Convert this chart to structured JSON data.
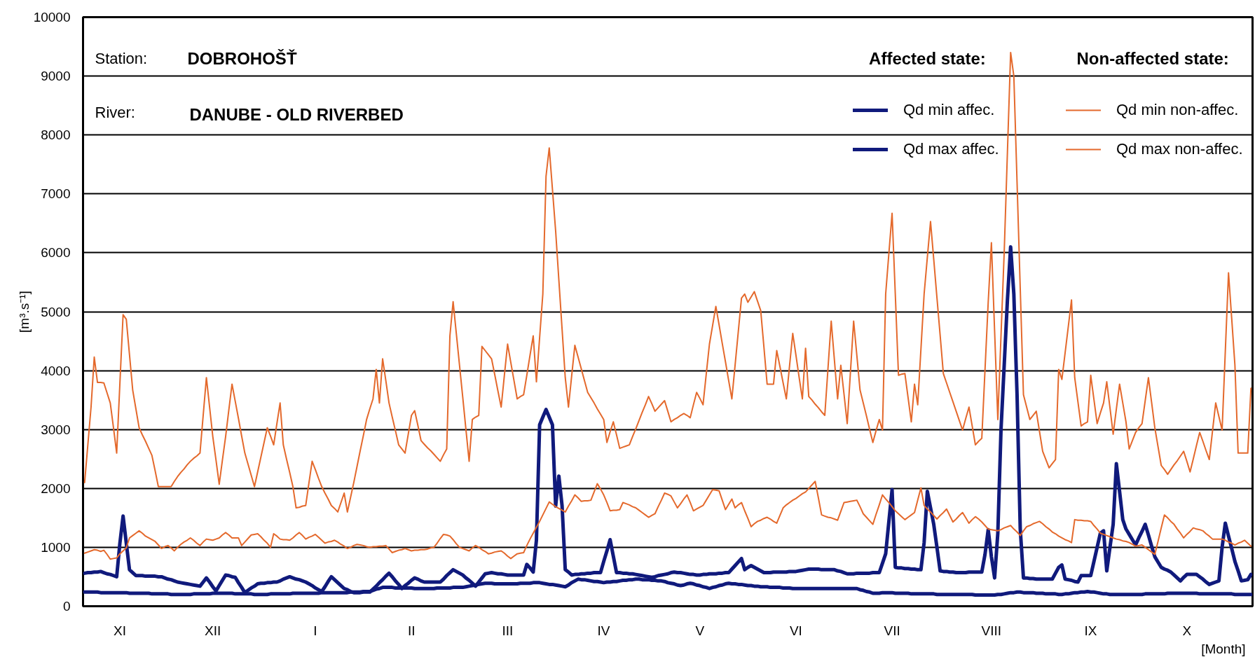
{
  "chart_data": {
    "type": "line",
    "ylim": [
      0,
      10000
    ],
    "categories": [
      null,
      null,
      null,
      null,
      null,
      null,
      null,
      null,
      null,
      null,
      null,
      "XI",
      null,
      null,
      null,
      null,
      null,
      null,
      null,
      null,
      null,
      null,
      null,
      null,
      null,
      null,
      null,
      null,
      null,
      null,
      null,
      null,
      null,
      null,
      null,
      null,
      null,
      null,
      null,
      null,
      "XII",
      null,
      null,
      null,
      null,
      null,
      null,
      null,
      null,
      null,
      null,
      null,
      null,
      null,
      null,
      null,
      null,
      null,
      null,
      null,
      null,
      null,
      null,
      null,
      null,
      null,
      null,
      null,
      null,
      null,
      null,
      null,
      "I",
      null,
      null,
      null,
      null,
      null,
      null,
      null,
      null,
      null,
      null,
      null,
      null,
      null,
      null,
      null,
      null,
      null,
      null,
      null,
      null,
      null,
      null,
      null,
      null,
      null,
      null,
      null,
      null,
      null,
      "II",
      null,
      null,
      null,
      null,
      null,
      null,
      null,
      null,
      null,
      null,
      null,
      null,
      null,
      null,
      null,
      null,
      null,
      null,
      null,
      null,
      null,
      null,
      null,
      null,
      null,
      null,
      null,
      null,
      null,
      "III",
      null,
      null,
      null,
      null,
      null,
      null,
      null,
      null,
      null,
      null,
      null,
      null,
      null,
      null,
      null,
      null,
      null,
      null,
      null,
      null,
      null,
      null,
      null,
      null,
      null,
      null,
      null,
      null,
      null,
      "IV",
      null,
      null,
      null,
      null,
      null,
      null,
      null,
      null,
      null,
      null,
      null,
      null,
      null,
      null,
      null,
      null,
      null,
      null,
      null,
      null,
      null,
      null,
      null,
      null,
      null,
      null,
      null,
      null,
      null,
      "V",
      null,
      null,
      null,
      null,
      null,
      null,
      null,
      null,
      null,
      null,
      null,
      null,
      null,
      null,
      null,
      null,
      null,
      null,
      null,
      null,
      null,
      null,
      null,
      null,
      null,
      null,
      null,
      null,
      null,
      "VI",
      null,
      null,
      null,
      null,
      null,
      null,
      null,
      null,
      null,
      null,
      null,
      null,
      null,
      null,
      null,
      null,
      null,
      null,
      null,
      null,
      null,
      null,
      null,
      null,
      null,
      null,
      null,
      null,
      null,
      "VII",
      null,
      null,
      null,
      null,
      null,
      null,
      null,
      null,
      null,
      null,
      null,
      null,
      null,
      null,
      null,
      null,
      null,
      null,
      null,
      null,
      null,
      null,
      null,
      null,
      null,
      null,
      null,
      null,
      null,
      null,
      "VIII",
      null,
      null,
      null,
      null,
      null,
      null,
      null,
      null,
      null,
      null,
      null,
      null,
      null,
      null,
      null,
      null,
      null,
      null,
      null,
      null,
      null,
      null,
      null,
      null,
      null,
      null,
      null,
      null,
      null,
      null,
      "IX",
      null,
      null,
      null,
      null,
      null,
      null,
      null,
      null,
      null,
      null,
      null,
      null,
      null,
      null,
      null,
      null,
      null,
      null,
      null,
      null,
      null,
      null,
      null,
      null,
      null,
      null,
      null,
      null,
      null,
      "X",
      null,
      null,
      null,
      null,
      null,
      null,
      null,
      null,
      null,
      null,
      null,
      null,
      null,
      null,
      null,
      null,
      null,
      null,
      null,
      null
    ],
    "yticks": [
      0,
      1000,
      2000,
      3000,
      4000,
      5000,
      6000,
      7000,
      8000,
      9000,
      10000
    ],
    "xlabel": "[Month]",
    "ylabel": "[m³.s⁻¹]",
    "annotations": [
      "Station:",
      "DOBROHOŠŤ",
      "River:",
      "DANUBE - OLD RIVERBED",
      "Affected state:",
      "Non-affected state:"
    ],
    "grid": "y",
    "legend": "top right",
    "series": [
      {
        "name": "Qd min affec.",
        "color": "#101a7c",
        "values": [
          240,
          240,
          240,
          240,
          240,
          230,
          230,
          230,
          230,
          230,
          230,
          230,
          230,
          230,
          220,
          220,
          220,
          220,
          220,
          220,
          220,
          210,
          210,
          210,
          210,
          210,
          210,
          200,
          200,
          200,
          200,
          200,
          200,
          200,
          210,
          210,
          210,
          210,
          210,
          210,
          220,
          220,
          220,
          220,
          220,
          220,
          220,
          210,
          210,
          210,
          210,
          210,
          210,
          200,
          200,
          200,
          200,
          200,
          210,
          210,
          210,
          210,
          210,
          210,
          210,
          220,
          220,
          220,
          220,
          220,
          220,
          220,
          220,
          220,
          230,
          230,
          230,
          230,
          230,
          230,
          230,
          230,
          230,
          240,
          240,
          240,
          240,
          250,
          250,
          250,
          270,
          290,
          300,
          320,
          320,
          320,
          320,
          310,
          310,
          310,
          310,
          310,
          310,
          300,
          300,
          300,
          300,
          300,
          300,
          300,
          310,
          310,
          310,
          310,
          310,
          320,
          320,
          320,
          320,
          330,
          340,
          350,
          360,
          370,
          380,
          390,
          390,
          390,
          380,
          380,
          380,
          380,
          380,
          380,
          380,
          380,
          390,
          390,
          390,
          390,
          400,
          400,
          400,
          390,
          380,
          370,
          370,
          360,
          350,
          340,
          330,
          360,
          400,
          430,
          460,
          450,
          450,
          440,
          430,
          420,
          420,
          410,
          400,
          410,
          410,
          420,
          420,
          430,
          440,
          440,
          450,
          450,
          460,
          460,
          450,
          450,
          450,
          440,
          440,
          430,
          430,
          420,
          400,
          390,
          380,
          360,
          350,
          360,
          380,
          390,
          380,
          360,
          350,
          330,
          320,
          300,
          320,
          330,
          350,
          360,
          380,
          390,
          380,
          380,
          370,
          370,
          360,
          350,
          350,
          340,
          340,
          330,
          330,
          330,
          320,
          320,
          320,
          320,
          310,
          310,
          310,
          300,
          300,
          300,
          300,
          300,
          300,
          300,
          300,
          300,
          300,
          300,
          300,
          300,
          300,
          300,
          300,
          300,
          300,
          300,
          300,
          300,
          280,
          270,
          250,
          240,
          220,
          220,
          220,
          230,
          230,
          230,
          230,
          220,
          220,
          220,
          220,
          220,
          210,
          210,
          210,
          210,
          210,
          210,
          210,
          210,
          200,
          200,
          200,
          200,
          200,
          200,
          200,
          200,
          200,
          200,
          200,
          200,
          190,
          190,
          190,
          190,
          190,
          190,
          190,
          200,
          200,
          210,
          220,
          230,
          230,
          240,
          240,
          230,
          230,
          230,
          230,
          220,
          220,
          220,
          210,
          210,
          210,
          210,
          200,
          200,
          210,
          210,
          220,
          230,
          230,
          240,
          240,
          250,
          240,
          240,
          230,
          220,
          210,
          210,
          200,
          200,
          200,
          200,
          200,
          200,
          200,
          200,
          200,
          200,
          200,
          210,
          210,
          210,
          210,
          210,
          210,
          210,
          220,
          220,
          220,
          220,
          220,
          220,
          220,
          220,
          220,
          220,
          210,
          210,
          210,
          210,
          210,
          210,
          210,
          210,
          210,
          210,
          210,
          200,
          200,
          200,
          200,
          200,
          200
        ]
      },
      {
        "name": "Qd max affec.",
        "color": "#101a7c",
        "values": [
          560,
          570,
          570,
          580,
          580,
          590,
          570,
          550,
          540,
          520,
          500,
          1070,
          1530,
          1070,
          620,
          570,
          520,
          520,
          520,
          510,
          510,
          510,
          510,
          500,
          500,
          480,
          460,
          450,
          430,
          410,
          400,
          390,
          380,
          370,
          360,
          350,
          340,
          410,
          480,
          410,
          330,
          260,
          350,
          440,
          530,
          520,
          500,
          490,
          400,
          320,
          230,
          270,
          310,
          340,
          380,
          390,
          390,
          400,
          400,
          410,
          410,
          430,
          460,
          480,
          500,
          480,
          460,
          450,
          430,
          410,
          380,
          350,
          310,
          280,
          250,
          330,
          420,
          500,
          450,
          400,
          350,
          300,
          280,
          250,
          230,
          230,
          230,
          240,
          240,
          240,
          290,
          340,
          400,
          450,
          510,
          560,
          500,
          430,
          370,
          300,
          350,
          390,
          440,
          480,
          460,
          430,
          410,
          410,
          410,
          410,
          410,
          410,
          460,
          520,
          570,
          620,
          590,
          560,
          530,
          480,
          440,
          390,
          340,
          410,
          480,
          550,
          560,
          570,
          560,
          550,
          550,
          540,
          530,
          530,
          530,
          530,
          530,
          530,
          710,
          650,
          580,
          1120,
          3080,
          3210,
          3340,
          3210,
          3080,
          1700,
          2210,
          1710,
          620,
          580,
          530,
          540,
          540,
          550,
          550,
          560,
          560,
          570,
          570,
          570,
          760,
          940,
          1130,
          850,
          570,
          570,
          560,
          560,
          550,
          550,
          540,
          530,
          520,
          510,
          500,
          490,
          500,
          520,
          530,
          540,
          550,
          570,
          580,
          570,
          570,
          560,
          550,
          540,
          540,
          530,
          530,
          540,
          540,
          550,
          550,
          550,
          560,
          560,
          570,
          570,
          630,
          690,
          750,
          810,
          620,
          660,
          690,
          660,
          630,
          600,
          570,
          570,
          570,
          580,
          580,
          580,
          580,
          580,
          590,
          590,
          590,
          600,
          610,
          620,
          630,
          630,
          630,
          630,
          620,
          620,
          620,
          620,
          620,
          600,
          590,
          570,
          550,
          550,
          550,
          560,
          560,
          560,
          560,
          560,
          570,
          570,
          570,
          730,
          890,
          1440,
          1980,
          660,
          650,
          650,
          640,
          640,
          630,
          630,
          620,
          620,
          1080,
          1950,
          1670,
          1390,
          1000,
          600,
          590,
          590,
          580,
          580,
          570,
          570,
          570,
          570,
          580,
          580,
          580,
          580,
          580,
          880,
          1300,
          840,
          480,
          1240,
          3000,
          4100,
          5200,
          6100,
          5300,
          3600,
          1310,
          480,
          480,
          470,
          470,
          460,
          460,
          460,
          460,
          460,
          460,
          560,
          660,
          700,
          460,
          450,
          440,
          420,
          410,
          520,
          520,
          520,
          520,
          760,
          1000,
          1240,
          1280,
          600,
          1000,
          1390,
          2420,
          1950,
          1470,
          1310,
          1220,
          1130,
          1040,
          1160,
          1270,
          1390,
          1210,
          1020,
          840,
          750,
          660,
          630,
          610,
          580,
          530,
          480,
          430,
          490,
          540,
          540,
          540,
          540,
          500,
          460,
          410,
          370,
          390,
          410,
          430,
          1000,
          1410,
          1190,
          980,
          760,
          600,
          430,
          440,
          450,
          540
        ]
      },
      {
        "name": "Qd min non-affec.",
        "color": "#e4692c",
        "values": [
          900,
          920,
          940,
          960,
          950,
          930,
          950,
          880,
          800,
          810,
          820,
          890,
          940,
          990,
          1160,
          1200,
          1240,
          1280,
          1240,
          1190,
          1160,
          1130,
          1100,
          1040,
          980,
          1010,
          1030,
          990,
          940,
          1000,
          1050,
          1090,
          1120,
          1160,
          1120,
          1070,
          1030,
          1090,
          1140,
          1130,
          1120,
          1140,
          1160,
          1210,
          1250,
          1210,
          1160,
          1160,
          1160,
          1030,
          1090,
          1150,
          1210,
          1220,
          1230,
          1180,
          1120,
          1070,
          1000,
          1230,
          1190,
          1140,
          1130,
          1130,
          1120,
          1160,
          1210,
          1250,
          1200,
          1140,
          1170,
          1190,
          1220,
          1170,
          1120,
          1070,
          1090,
          1100,
          1120,
          1090,
          1050,
          1020,
          980,
          1000,
          1030,
          1050,
          1040,
          1030,
          1010,
          1000,
          1010,
          1010,
          1020,
          1020,
          1030,
          970,
          910,
          930,
          950,
          960,
          980,
          960,
          940,
          950,
          950,
          960,
          960,
          970,
          990,
          1000,
          1070,
          1150,
          1220,
          1210,
          1190,
          1130,
          1060,
          1000,
          980,
          960,
          940,
          990,
          1030,
          1000,
          960,
          930,
          890,
          900,
          920,
          930,
          940,
          900,
          850,
          810,
          850,
          890,
          900,
          910,
          1030,
          1140,
          1240,
          1340,
          1440,
          1550,
          1660,
          1770,
          1730,
          1690,
          1660,
          1630,
          1600,
          1700,
          1790,
          1890,
          1840,
          1780,
          1790,
          1790,
          1800,
          1940,
          2080,
          1990,
          1890,
          1760,
          1620,
          1630,
          1630,
          1640,
          1760,
          1740,
          1720,
          1690,
          1670,
          1630,
          1590,
          1550,
          1510,
          1540,
          1570,
          1690,
          1800,
          1920,
          1900,
          1870,
          1770,
          1670,
          1740,
          1820,
          1890,
          1760,
          1620,
          1650,
          1680,
          1710,
          1800,
          1890,
          1980,
          1970,
          1960,
          1800,
          1640,
          1730,
          1820,
          1670,
          1720,
          1760,
          1620,
          1490,
          1350,
          1400,
          1440,
          1460,
          1490,
          1510,
          1480,
          1440,
          1410,
          1540,
          1670,
          1720,
          1760,
          1800,
          1830,
          1870,
          1910,
          1940,
          2000,
          2060,
          2120,
          1840,
          1550,
          1530,
          1510,
          1500,
          1480,
          1460,
          1610,
          1760,
          1770,
          1780,
          1790,
          1800,
          1690,
          1570,
          1510,
          1450,
          1390,
          1560,
          1720,
          1890,
          1820,
          1760,
          1690,
          1620,
          1570,
          1520,
          1470,
          1510,
          1550,
          1590,
          1800,
          2010,
          1710,
          1650,
          1600,
          1540,
          1480,
          1540,
          1590,
          1650,
          1540,
          1430,
          1480,
          1540,
          1590,
          1500,
          1410,
          1470,
          1520,
          1480,
          1430,
          1370,
          1310,
          1300,
          1290,
          1280,
          1300,
          1330,
          1350,
          1370,
          1310,
          1260,
          1200,
          1280,
          1350,
          1370,
          1400,
          1420,
          1440,
          1400,
          1350,
          1310,
          1260,
          1230,
          1190,
          1160,
          1130,
          1110,
          1080,
          1470,
          1460,
          1460,
          1450,
          1450,
          1440,
          1370,
          1310,
          1240,
          1220,
          1200,
          1180,
          1160,
          1140,
          1130,
          1110,
          1100,
          1080,
          1050,
          1020,
          1030,
          1040,
          1000,
          960,
          920,
          880,
          1100,
          1330,
          1550,
          1500,
          1440,
          1390,
          1310,
          1240,
          1160,
          1220,
          1270,
          1330,
          1310,
          1300,
          1280,
          1230,
          1190,
          1140,
          1140,
          1140,
          1140,
          1120,
          1090,
          1070,
          1040,
          1070,
          1090,
          1120,
          1070,
          1020
        ]
      },
      {
        "name": "Qd max non-affec.",
        "color": "#e4692c",
        "values": [
          2100,
          2740,
          3380,
          4230,
          3800,
          3800,
          3790,
          3620,
          3450,
          3030,
          2600,
          3780,
          4950,
          4870,
          4270,
          3670,
          3350,
          3030,
          2910,
          2800,
          2680,
          2560,
          2300,
          2030,
          2030,
          2030,
          2030,
          2030,
          2120,
          2200,
          2270,
          2330,
          2400,
          2460,
          2510,
          2550,
          2600,
          3240,
          3880,
          3380,
          2880,
          2480,
          2070,
          2480,
          2880,
          3330,
          3770,
          3480,
          3190,
          2890,
          2600,
          2410,
          2220,
          2030,
          2280,
          2530,
          2780,
          3030,
          2890,
          2740,
          3100,
          3450,
          2740,
          2500,
          2270,
          2030,
          1670,
          1680,
          1700,
          1710,
          2090,
          2460,
          2320,
          2170,
          2030,
          1920,
          1820,
          1710,
          1660,
          1600,
          1760,
          1920,
          1600,
          1850,
          2100,
          2370,
          2640,
          2900,
          3170,
          3350,
          3520,
          4020,
          3450,
          4200,
          3830,
          3450,
          3210,
          2980,
          2740,
          2670,
          2600,
          2920,
          3240,
          3320,
          3070,
          2810,
          2750,
          2690,
          2640,
          2580,
          2520,
          2460,
          2570,
          2670,
          4590,
          5170,
          4630,
          4090,
          3550,
          3000,
          2460,
          3170,
          3210,
          3240,
          4410,
          4340,
          4270,
          4200,
          3930,
          3650,
          3380,
          3920,
          4450,
          4140,
          3830,
          3520,
          3560,
          3590,
          3920,
          4260,
          4590,
          3810,
          4560,
          5300,
          7300,
          7780,
          7080,
          6370,
          5540,
          4710,
          3880,
          3380,
          3910,
          4430,
          4230,
          4030,
          3830,
          3630,
          3540,
          3450,
          3350,
          3260,
          3170,
          2780,
          2960,
          3130,
          2910,
          2680,
          2700,
          2720,
          2740,
          2880,
          3010,
          3150,
          3290,
          3420,
          3560,
          3440,
          3310,
          3370,
          3430,
          3490,
          3310,
          3130,
          3170,
          3200,
          3240,
          3270,
          3240,
          3200,
          3420,
          3630,
          3530,
          3420,
          3940,
          4450,
          4770,
          5090,
          4780,
          4460,
          4150,
          3830,
          3520,
          4090,
          4660,
          5230,
          5300,
          5160,
          5250,
          5340,
          5180,
          5020,
          4400,
          3770,
          3770,
          3770,
          4340,
          4070,
          3790,
          3520,
          4080,
          4630,
          4260,
          3880,
          3520,
          4380,
          3560,
          3500,
          3430,
          3370,
          3300,
          3240,
          4040,
          4840,
          4180,
          3520,
          4090,
          3600,
          3100,
          3970,
          4840,
          4260,
          3670,
          3450,
          3230,
          3000,
          2780,
          2980,
          3170,
          2990,
          5300,
          5990,
          6670,
          5300,
          3920,
          3940,
          3950,
          3540,
          3130,
          3770,
          3420,
          4360,
          5300,
          5920,
          6530,
          5890,
          5240,
          4600,
          3950,
          3790,
          3630,
          3470,
          3310,
          3150,
          2990,
          3190,
          3380,
          3060,
          2740,
          2800,
          2850,
          4010,
          5160,
          6170,
          4670,
          3170,
          4600,
          6020,
          7710,
          9400,
          9000,
          7200,
          5390,
          3590,
          3380,
          3170,
          3240,
          3310,
          2970,
          2630,
          2490,
          2350,
          2420,
          2490,
          4020,
          3850,
          4300,
          4750,
          5200,
          3880,
          3470,
          3060,
          3100,
          3130,
          3920,
          3510,
          3100,
          3280,
          3450,
          3810,
          3370,
          2920,
          3350,
          3770,
          3450,
          3130,
          2670,
          2810,
          2950,
          3030,
          3100,
          3490,
          3880,
          3460,
          3030,
          2710,
          2390,
          2320,
          2240,
          2320,
          2400,
          2470,
          2550,
          2630,
          2460,
          2280,
          2500,
          2730,
          2950,
          2800,
          2640,
          2490,
          2970,
          3450,
          3220,
          2990,
          4330,
          5660,
          4880,
          4090,
          2600,
          2600,
          2600,
          2600,
          3700
        ]
      }
    ]
  }
}
